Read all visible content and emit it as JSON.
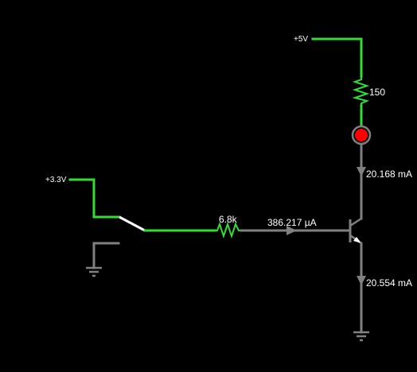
{
  "colors": {
    "background": "#000000",
    "live_wire": "#33dd33",
    "dead_wire": "#808080",
    "switch_blade": "#ffffff",
    "led": "#ff0000",
    "text": "#ffffff"
  },
  "sources": {
    "v5": {
      "label": "+5V"
    },
    "v33": {
      "label": "+3.3V"
    }
  },
  "components": {
    "collector_resistor": {
      "value": "150"
    },
    "base_resistor": {
      "value": "6.8k"
    },
    "led": {
      "icon": "led-icon"
    },
    "switch": {
      "icon": "switch-icon"
    },
    "transistor": {
      "icon": "npn-transistor-icon"
    }
  },
  "currents": {
    "base": "386.217 µA",
    "collector": "20.168 mA",
    "emitter": "20.554 mA"
  }
}
